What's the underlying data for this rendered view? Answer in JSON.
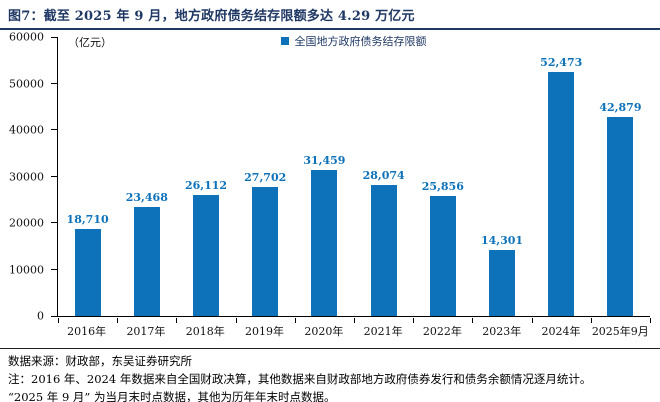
{
  "title": "图7：截至 2025 年 9 月，地方政府债务结存限额多达 4.29 万亿元",
  "colors": {
    "accent": "#0D72B9",
    "title": "#1F3864",
    "axis": "#000000"
  },
  "chart_data": {
    "type": "bar",
    "title": "截至 2025 年 9 月，地方政府债务结存限额多达 4.29 万亿元",
    "unit_label": "（亿元）",
    "legend": "全国地方政府债务结存限额",
    "legend_position": "top-center",
    "grid": false,
    "categories": [
      "2016年",
      "2017年",
      "2018年",
      "2019年",
      "2020年",
      "2021年",
      "2022年",
      "2023年",
      "2024年",
      "2025年9月"
    ],
    "values": [
      18710,
      23468,
      26112,
      27702,
      31459,
      28074,
      25856,
      14301,
      52473,
      42879
    ],
    "value_labels": [
      "18,710",
      "23,468",
      "26,112",
      "27,702",
      "31,459",
      "28,074",
      "25,856",
      "14,301",
      "52,473",
      "42,879"
    ],
    "xlabel": "",
    "ylabel": "亿元",
    "ylim": [
      0,
      60000
    ],
    "ytick_step": 10000,
    "yticks_top_to_bottom": [
      "60000",
      "50000",
      "40000",
      "30000",
      "20000",
      "10000",
      "0"
    ]
  },
  "footer": {
    "source": "数据来源：财政部，东吴证券研究所",
    "note1": "注：2016 年、2024 年数据来自全国财政决算，其他数据来自财政部地方政府债券发行和债务余额情况逐月统计。",
    "note2": "“2025 年 9 月” 为当月末时点数据，其他为历年年末时点数据。"
  }
}
